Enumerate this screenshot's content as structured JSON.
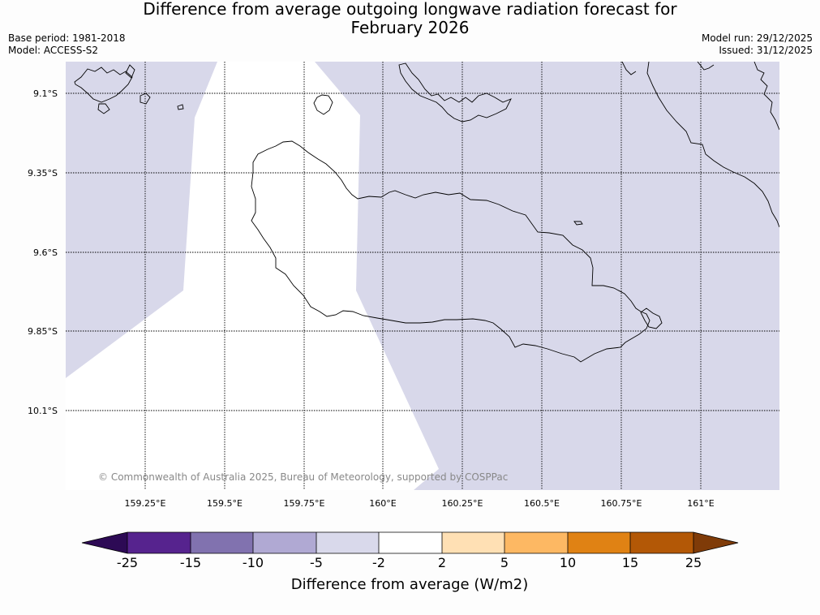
{
  "header": {
    "title_line1": "Difference from average outgoing longwave radiation forecast for",
    "title_line2": "February 2026",
    "base_period": "Base period: 1981-2018",
    "model": "Model: ACCESS-S2",
    "model_run": "Model run: 29/12/2025",
    "issued": "Issued: 31/12/2025"
  },
  "map": {
    "lat_labels": [
      "9.1°S",
      "9.35°S",
      "9.6°S",
      "9.85°S",
      "10.1°S"
    ],
    "lon_labels": [
      "159.25°E",
      "159.5°E",
      "159.75°E",
      "160°E",
      "160.25°E",
      "160.5°E",
      "160.75°E",
      "161°E"
    ],
    "copyright": "© Commonwealth of Australia 2025, Bureau of Meteorology, supported by COSPPac",
    "anomaly_fill_color": "#d8d8ea",
    "neutral_fill_color": "#ffffff"
  },
  "colorbar": {
    "ticks": [
      "-25",
      "-15",
      "-10",
      "-5",
      "-2",
      "2",
      "5",
      "10",
      "15",
      "25"
    ],
    "colors": [
      "#2d0a55",
      "#56238e",
      "#8172af",
      "#b0a9d3",
      "#d9d9eb",
      "#ffffff",
      "#ffe0b4",
      "#fdb863",
      "#e08214",
      "#b35806",
      "#7f3b08"
    ],
    "label": "Difference from average (W/m2)"
  }
}
